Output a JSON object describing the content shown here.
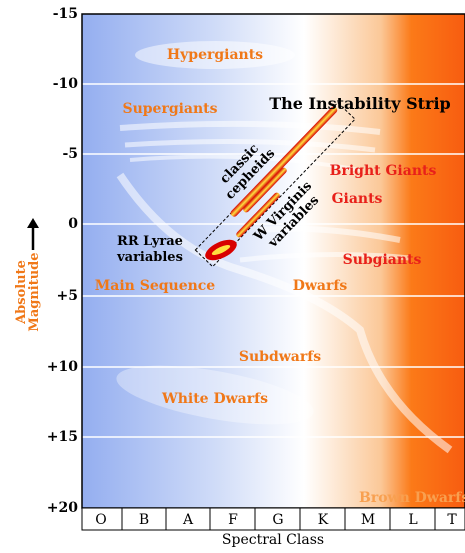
{
  "title": "The Instability Strip",
  "y_axis": {
    "label": [
      "Absolute",
      "Magnitude"
    ],
    "ticks": [
      "-15",
      "-10",
      "-5",
      "0",
      "+5",
      "+10",
      "+15",
      "+20"
    ]
  },
  "x_axis": {
    "label": "Spectral Class",
    "classes": [
      "O",
      "B",
      "A",
      "F",
      "G",
      "K",
      "M",
      "L",
      "T"
    ]
  },
  "regions": {
    "hypergiants": "Hypergiants",
    "supergiants": "Supergiants",
    "classic_cepheids": [
      "classic",
      "cepheids"
    ],
    "bright_giants": "Bright Giants",
    "giants": "Giants",
    "w_virginis": [
      "W Virginis",
      "variables"
    ],
    "rr_lyrae": [
      "RR Lyrae",
      "variables"
    ],
    "subgiants": "Subgiants",
    "main_sequence": "Main Sequence",
    "dwarfs": "Dwarfs",
    "subdwarfs": "Subdwarfs",
    "white_dwarfs": "White Dwarfs",
    "brown_dwarfs": "Brown Dwarfs"
  }
}
